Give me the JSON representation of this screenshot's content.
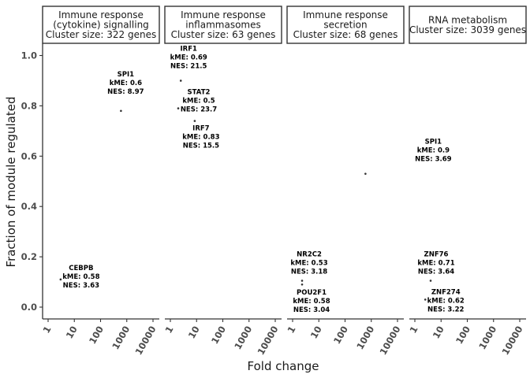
{
  "chart_data": {
    "type": "scatter",
    "layout": "faceted",
    "xlabel": "Fold change",
    "ylabel": "Fraction of module regulated",
    "x_scale": "log10",
    "xlim": [
      1,
      10000
    ],
    "ylim": [
      0,
      1
    ],
    "x_ticks": [
      "1",
      "10",
      "100",
      "1000",
      "10000"
    ],
    "y_ticks": [
      "0.0",
      "0.2",
      "0.4",
      "0.6",
      "0.8",
      "1.0"
    ],
    "y_tick_values": [
      0,
      0.2,
      0.4,
      0.6,
      0.8,
      1.0
    ],
    "x_tick_values": [
      1,
      10,
      100,
      1000,
      10000
    ],
    "panels": [
      {
        "strip": [
          "Immune response",
          "(cytokine) signalling",
          "Cluster size: 322 genes"
        ],
        "points": [
          {
            "gene": "SPI1",
            "kme": "kME: 0.6",
            "nes": "NES: 8.97",
            "x": 600,
            "y": 0.78
          },
          {
            "gene": "CEBPB",
            "kme": "kME: 0.58",
            "nes": "NES: 3.63",
            "x": 3,
            "y": 0.11
          }
        ]
      },
      {
        "strip": [
          "Immune response",
          "inflammasomes",
          "Cluster size: 63 genes"
        ],
        "points": [
          {
            "gene": "IRF1",
            "kme": "kME: 0.69",
            "nes": "NES: 21.5",
            "x": 2.5,
            "y": 0.9
          },
          {
            "gene": "STAT2",
            "kme": "kME: 0.5",
            "nes": "NES: 23.7",
            "x": 2,
            "y": 0.79
          },
          {
            "gene": "IRF7",
            "kme": "kME: 0.83",
            "nes": "NES: 15.5",
            "x": 8.5,
            "y": 0.74
          }
        ]
      },
      {
        "strip": [
          "Immune response",
          "secretion",
          "Cluster size: 68 genes"
        ],
        "points": [
          {
            "gene": "SPI1",
            "kme": "kME: 0.9",
            "nes": "NES: 3.69",
            "x": 600,
            "y": 0.53
          },
          {
            "gene": "NR2C2",
            "kme": "kME: 0.53",
            "nes": "NES: 3.18",
            "x": 2.3,
            "y": 0.105
          },
          {
            "gene": "POU2F1",
            "kme": "kME: 0.58",
            "nes": "NES: 3.04",
            "x": 2.3,
            "y": 0.09
          }
        ]
      },
      {
        "strip": [
          "RNA metabolism",
          "Cluster size: 3039 genes"
        ],
        "points": [
          {
            "gene": "ZNF76",
            "kme": "kME: 0.71",
            "nes": "NES: 3.64",
            "x": 4,
            "y": 0.105
          },
          {
            "gene": "ZNF274",
            "kme": "kME: 0.62",
            "nes": "NES: 3.22",
            "x": 2.5,
            "y": 0.03
          }
        ]
      }
    ]
  }
}
